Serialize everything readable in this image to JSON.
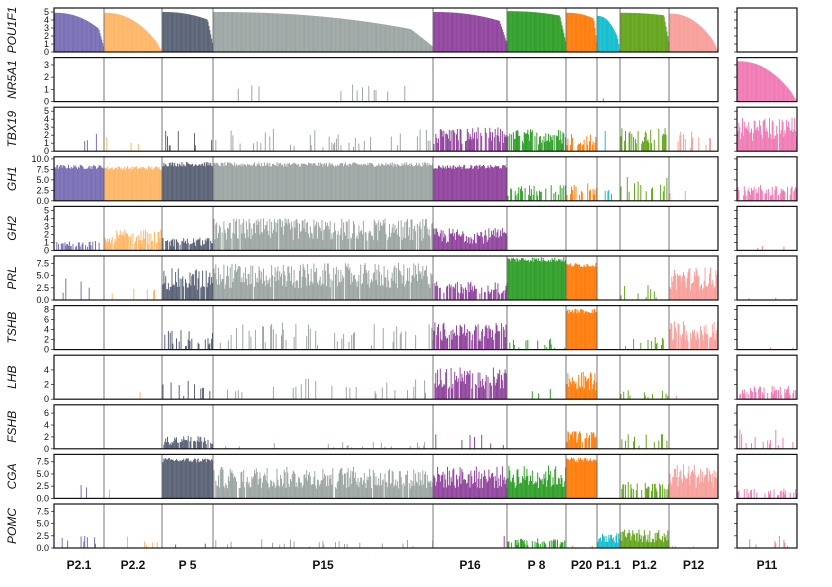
{
  "chart_data": {
    "type": "bar",
    "description_of_layout": "small multiples: one row per gene, cells as bars grouped by cluster",
    "clusters": [
      {
        "name": "P2.1",
        "color": "#7a70b6",
        "main": true
      },
      {
        "name": "P2.2",
        "color": "#fdb769",
        "main": true
      },
      {
        "name": "P 5",
        "color": "#5c6478",
        "main": true
      },
      {
        "name": "P15",
        "color": "#9ea7a5",
        "main": true
      },
      {
        "name": "P16",
        "color": "#92479f",
        "main": true
      },
      {
        "name": "P 8",
        "color": "#33a02c",
        "main": true
      },
      {
        "name": "P20",
        "color": "#ff7f0e",
        "main": true
      },
      {
        "name": "P1.1",
        "color": "#17becf",
        "main": true
      },
      {
        "name": "P1.2",
        "color": "#66a61e",
        "main": true
      },
      {
        "name": "P12",
        "color": "#f8a09c",
        "main": true
      },
      {
        "name": "P11",
        "color": "#f07cb6",
        "main": false
      }
    ],
    "genes": [
      {
        "name": "POU1F1",
        "ymax": 5.5,
        "ticks": [
          "0",
          "1",
          "2",
          "3",
          "4",
          "5"
        ],
        "profile": {
          "P2.1": [
            4.9,
            2.4,
            "sorted"
          ],
          "P2.2": [
            4.9,
            0.4,
            "sorted"
          ],
          "P 5": [
            5.0,
            3.8,
            "sorted"
          ],
          "P15": [
            5.0,
            2.3,
            "sorted"
          ],
          "P16": [
            5.0,
            3.6,
            "sorted"
          ],
          "P 8": [
            5.1,
            4.4,
            "sorted"
          ],
          "P20": [
            4.9,
            4.0,
            "sorted"
          ],
          "P1.1": [
            4.5,
            1.2,
            "sorted"
          ],
          "P1.2": [
            4.9,
            4.5,
            "sorted"
          ],
          "P12": [
            4.8,
            0.6,
            "sorted"
          ],
          "P11": [
            0,
            0,
            "none"
          ]
        }
      },
      {
        "name": "NR5A1",
        "ymax": 3.6,
        "ticks": [
          "0",
          "1",
          "2",
          "3"
        ],
        "profile": {
          "P2.1": [
            0,
            0,
            "none"
          ],
          "P2.2": [
            0,
            0,
            "none"
          ],
          "P 5": [
            0,
            0,
            "none"
          ],
          "P15": [
            0.05,
            1.4,
            "rare"
          ],
          "P16": [
            0,
            0,
            "none"
          ],
          "P 8": [
            0,
            0,
            "none"
          ],
          "P20": [
            0,
            0,
            "none"
          ],
          "P1.1": [
            0.02,
            0.4,
            "rare"
          ],
          "P1.2": [
            0,
            0,
            "none"
          ],
          "P12": [
            0,
            0,
            "none"
          ],
          "P11": [
            3.3,
            0.2,
            "sorted"
          ]
        }
      },
      {
        "name": "TBX19",
        "ymax": 5.5,
        "ticks": [
          "0",
          "1",
          "2",
          "3",
          "4",
          "5"
        ],
        "profile": {
          "P2.1": [
            0.15,
            3.5,
            "sparse"
          ],
          "P2.2": [
            0.12,
            2.5,
            "sparse"
          ],
          "P 5": [
            0.35,
            2.8,
            "sparse"
          ],
          "P15": [
            0.25,
            2.8,
            "sparse"
          ],
          "P16": [
            0.75,
            3.0,
            "dense"
          ],
          "P 8": [
            0.8,
            2.8,
            "dense"
          ],
          "P20": [
            0.6,
            2.4,
            "dense"
          ],
          "P1.1": [
            0.2,
            3.5,
            "sparse"
          ],
          "P1.2": [
            0.6,
            3.0,
            "dense"
          ],
          "P12": [
            0.45,
            2.5,
            "sparse"
          ],
          "P11": [
            0.95,
            4.3,
            "dense"
          ]
        }
      },
      {
        "name": "GH1",
        "ymax": 10.5,
        "ticks": [
          "0.0",
          "2.5",
          "5.0",
          "7.5",
          "10.0"
        ],
        "profile": {
          "P2.1": [
            1.0,
            8.6,
            "solid"
          ],
          "P2.2": [
            1.0,
            8.3,
            "solid"
          ],
          "P 5": [
            1.0,
            9.3,
            "solid"
          ],
          "P15": [
            1.0,
            9.2,
            "solid"
          ],
          "P16": [
            1.0,
            8.6,
            "solid"
          ],
          "P 8": [
            0.45,
            3.8,
            "dense"
          ],
          "P20": [
            0.55,
            4.2,
            "dense"
          ],
          "P1.1": [
            0.3,
            4.0,
            "sparse"
          ],
          "P1.2": [
            0.45,
            6.0,
            "dense"
          ],
          "P12": [
            0.03,
            2.5,
            "rare"
          ],
          "P11": [
            0.7,
            3.8,
            "dense"
          ]
        }
      },
      {
        "name": "GH2",
        "ymax": 5.5,
        "ticks": [
          "0",
          "1",
          "2",
          "3",
          "4",
          "5"
        ],
        "profile": {
          "P2.1": [
            0.5,
            1.2,
            "dense"
          ],
          "P2.2": [
            0.8,
            2.6,
            "dense"
          ],
          "P 5": [
            0.9,
            1.6,
            "dense"
          ],
          "P15": [
            0.95,
            4.0,
            "dense"
          ],
          "P16": [
            1.0,
            2.8,
            "dense"
          ],
          "P 8": [
            0,
            0,
            "none"
          ],
          "P20": [
            0,
            0,
            "none"
          ],
          "P1.1": [
            0,
            0,
            "none"
          ],
          "P1.2": [
            0,
            0,
            "none"
          ],
          "P12": [
            0,
            0,
            "none"
          ],
          "P11": [
            0.05,
            0.6,
            "rare"
          ]
        }
      },
      {
        "name": "PRL",
        "ymax": 9.0,
        "ticks": [
          "0.0",
          "2.5",
          "5.0",
          "7.5"
        ],
        "profile": {
          "P2.1": [
            0.12,
            4.5,
            "sparse"
          ],
          "P2.2": [
            0.08,
            2.5,
            "sparse"
          ],
          "P 5": [
            0.95,
            6.5,
            "dense"
          ],
          "P15": [
            0.98,
            7.6,
            "dense"
          ],
          "P16": [
            0.7,
            3.8,
            "dense"
          ],
          "P 8": [
            1.0,
            8.8,
            "solid"
          ],
          "P20": [
            1.0,
            7.6,
            "solid"
          ],
          "P1.1": [
            0,
            0,
            "none"
          ],
          "P1.2": [
            0.3,
            3.2,
            "sparse"
          ],
          "P12": [
            1.0,
            6.8,
            "dense"
          ],
          "P11": [
            0.05,
            0.5,
            "rare"
          ]
        }
      },
      {
        "name": "TSHB",
        "ymax": 8.8,
        "ticks": [
          "0",
          "2",
          "4",
          "6",
          "8"
        ],
        "profile": {
          "P2.1": [
            0,
            0,
            "none"
          ],
          "P2.2": [
            0,
            0,
            "none"
          ],
          "P 5": [
            0.55,
            4.0,
            "sparse"
          ],
          "P15": [
            0.35,
            5.5,
            "sparse"
          ],
          "P16": [
            0.85,
            5.5,
            "dense"
          ],
          "P 8": [
            0.35,
            2.4,
            "sparse"
          ],
          "P20": [
            1.0,
            8.2,
            "solid"
          ],
          "P1.1": [
            0,
            0,
            "none"
          ],
          "P1.2": [
            0.3,
            2.5,
            "sparse"
          ],
          "P12": [
            0.95,
            5.8,
            "dense"
          ],
          "P11": [
            0.03,
            0.5,
            "rare"
          ]
        }
      },
      {
        "name": "LHB",
        "ymax": 6.0,
        "ticks": [
          "0",
          "2",
          "4"
        ],
        "profile": {
          "P2.1": [
            0,
            0,
            "none"
          ],
          "P2.2": [
            0.02,
            1.0,
            "rare"
          ],
          "P 5": [
            0.25,
            2.5,
            "sparse"
          ],
          "P15": [
            0.12,
            2.8,
            "sparse"
          ],
          "P16": [
            0.9,
            4.5,
            "dense"
          ],
          "P 8": [
            0.15,
            1.5,
            "sparse"
          ],
          "P20": [
            1.0,
            3.8,
            "dense"
          ],
          "P1.1": [
            0,
            0,
            "none"
          ],
          "P1.2": [
            0.25,
            1.2,
            "sparse"
          ],
          "P12": [
            0.02,
            0.5,
            "rare"
          ],
          "P11": [
            0.6,
            1.8,
            "dense"
          ]
        }
      },
      {
        "name": "FSHB",
        "ymax": 7.4,
        "ticks": [
          "0",
          "2",
          "4",
          "6"
        ],
        "profile": {
          "P2.1": [
            0,
            0,
            "none"
          ],
          "P2.2": [
            0,
            0,
            "none"
          ],
          "P 5": [
            0.9,
            2.2,
            "dense"
          ],
          "P15": [
            0.12,
            1.2,
            "sparse"
          ],
          "P16": [
            0.15,
            2.5,
            "sparse"
          ],
          "P 8": [
            0,
            0,
            "none"
          ],
          "P20": [
            0.85,
            3.0,
            "dense"
          ],
          "P1.1": [
            0,
            0,
            "none"
          ],
          "P1.2": [
            0.4,
            2.5,
            "sparse"
          ],
          "P12": [
            0,
            0,
            "none"
          ],
          "P11": [
            0.35,
            3.5,
            "sparse"
          ]
        }
      },
      {
        "name": "CGA",
        "ymax": 9.0,
        "ticks": [
          "0.0",
          "2.5",
          "5.0",
          "7.5"
        ],
        "profile": {
          "P2.1": [
            0.08,
            3.0,
            "sparse"
          ],
          "P2.2": [
            0.02,
            2.0,
            "rare"
          ],
          "P 5": [
            1.0,
            8.3,
            "solid"
          ],
          "P15": [
            0.95,
            6.5,
            "dense"
          ],
          "P16": [
            1.0,
            6.6,
            "dense"
          ],
          "P 8": [
            1.0,
            6.8,
            "dense"
          ],
          "P20": [
            1.0,
            8.4,
            "solid"
          ],
          "P1.1": [
            0,
            0,
            "none"
          ],
          "P1.2": [
            0.55,
            3.4,
            "dense"
          ],
          "P12": [
            1.0,
            7.2,
            "dense"
          ],
          "P11": [
            0.5,
            2.0,
            "dense"
          ]
        }
      },
      {
        "name": "POMC",
        "ymax": 9.0,
        "ticks": [
          "0.0",
          "2.5",
          "5.0",
          "7.5"
        ],
        "profile": {
          "P2.1": [
            0.25,
            2.8,
            "sparse"
          ],
          "P2.2": [
            0.3,
            2.8,
            "sparse"
          ],
          "P 5": [
            0.1,
            1.0,
            "sparse"
          ],
          "P15": [
            0.12,
            1.8,
            "sparse"
          ],
          "P16": [
            0.1,
            2.5,
            "sparse"
          ],
          "P 8": [
            0.55,
            2.0,
            "dense"
          ],
          "P20": [
            0.05,
            0.4,
            "rare"
          ],
          "P1.1": [
            1.0,
            3.2,
            "dense"
          ],
          "P1.2": [
            1.0,
            3.8,
            "dense"
          ],
          "P12": [
            0.05,
            0.5,
            "rare"
          ],
          "P11": [
            0.35,
            2.8,
            "sparse"
          ]
        }
      }
    ],
    "x_tick_labels": [
      "P2.1",
      "P2.2",
      "P 5",
      "P15",
      "P16",
      "P 8",
      "P20",
      "P1.1",
      "P1.2",
      "P12",
      "P11"
    ]
  }
}
